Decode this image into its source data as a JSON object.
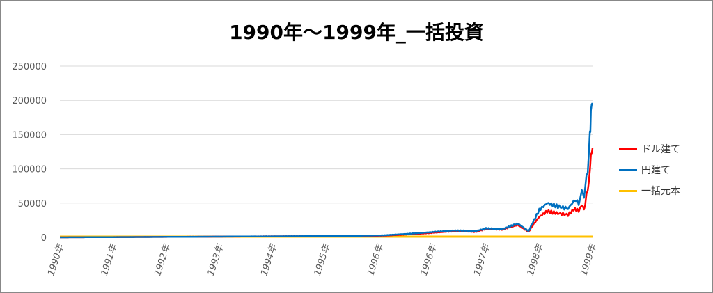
{
  "chart_data": {
    "type": "line",
    "title": "1990年～1999年_一括投資",
    "xlabel": "",
    "ylabel": "",
    "ylim": [
      0,
      250000
    ],
    "yticks": [
      "0",
      "50000",
      "100000",
      "150000",
      "200000",
      "250000"
    ],
    "xticks": [
      "1990年",
      "1991年",
      "1992年",
      "1993年",
      "1994年",
      "1995年",
      "1996年",
      "1996年",
      "1997年",
      "1998年",
      "1999年"
    ],
    "x": [
      0,
      15,
      28,
      41,
      54,
      61,
      67,
      74,
      78,
      80,
      83,
      86,
      88,
      89,
      90,
      91.5,
      93.5,
      95.4,
      96.7,
      97.4,
      98,
      98.4,
      99.1,
      99.5,
      99.7,
      100
    ],
    "series": [
      {
        "name": "ドル建て",
        "color": "#ff0000",
        "values": [
          0,
          500,
          1000,
          1500,
          1800,
          2500,
          5000,
          9000,
          8000,
          12000,
          11500,
          18000,
          8000,
          20000,
          30000,
          38000,
          35000,
          33000,
          42000,
          38000,
          45000,
          40000,
          70000,
          100000,
          117000,
          130000
        ]
      },
      {
        "name": "円建て",
        "color": "#0070c0",
        "values": [
          0,
          500,
          1000,
          1500,
          2000,
          3000,
          6000,
          10000,
          9000,
          13000,
          12000,
          20000,
          9000,
          25000,
          40000,
          50000,
          45000,
          42000,
          55000,
          50000,
          65000,
          60000,
          100000,
          150000,
          175000,
          196000
        ]
      },
      {
        "name": "一括元本",
        "color": "#ffc000",
        "values": [
          1000,
          1000,
          1000,
          1000,
          1000,
          1000,
          1000,
          1000,
          1000,
          1000,
          1000,
          1000,
          1000,
          1000,
          1000,
          1000,
          1000,
          1000,
          1000,
          1000,
          1000,
          1000,
          1000,
          1000,
          1000,
          1000
        ]
      }
    ],
    "grid": true,
    "legend": "right"
  }
}
